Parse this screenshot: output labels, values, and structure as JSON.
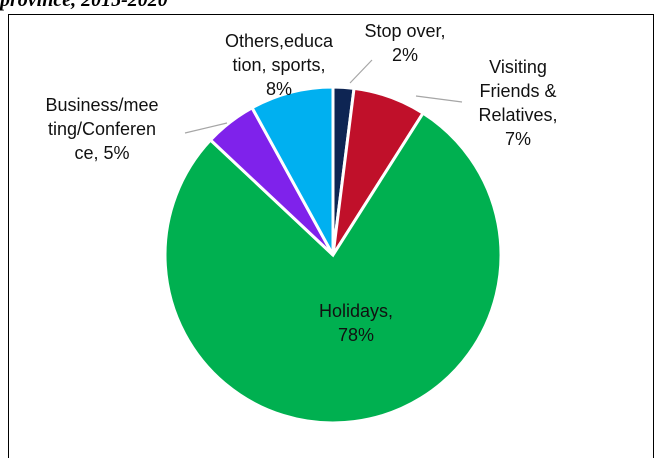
{
  "caption": "province, 2015-2020",
  "chart_data": {
    "type": "pie",
    "slices": [
      {
        "label_lines": [
          "Stop over,",
          "2%"
        ],
        "value": 2,
        "color": "#0e2553"
      },
      {
        "label_lines": [
          "Visiting",
          "Friends &",
          "Relatives,",
          "7%"
        ],
        "value": 7,
        "color": "#c0102a"
      },
      {
        "label_lines": [
          "Holidays,",
          "78%"
        ],
        "value": 78,
        "color": "#00b050"
      },
      {
        "label_lines": [
          "Business/mee",
          "ting/Conferen",
          "ce, 5%"
        ],
        "value": 5,
        "color": "#7f22eb"
      },
      {
        "label_lines": [
          "Others,educa",
          "tion, sports,",
          "8%"
        ],
        "value": 8,
        "color": "#00b0f0"
      }
    ]
  }
}
